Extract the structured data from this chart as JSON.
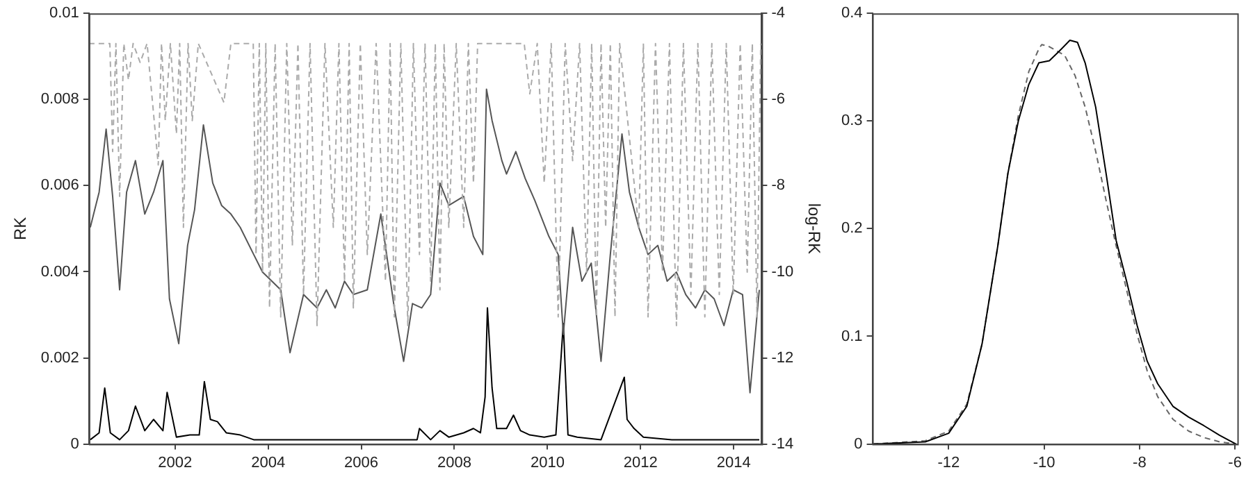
{
  "chart_data": [
    {
      "type": "line",
      "ylabel": "RK",
      "y2label": "log-RK",
      "xlim": [
        2000.15,
        2014.6
      ],
      "xticks": [
        2002,
        2004,
        2006,
        2008,
        2010,
        2012,
        2014
      ],
      "ylim": [
        0,
        0.01
      ],
      "yticks": [
        0,
        0.002,
        0.004,
        0.006,
        0.008,
        0.01
      ],
      "y2lim": [
        -14,
        -4
      ],
      "y2ticks": [
        -14,
        -12,
        -10,
        -8,
        -6,
        -4
      ],
      "grid": false,
      "marker": "none",
      "series": [
        {
          "color": "#aaaaaa",
          "axis": "y2",
          "line_style": "dashed",
          "x": [
            2000.15,
            2000.6,
            2000.66,
            2000.73,
            2000.81,
            2000.9,
            2001.0,
            2001.1,
            2001.25,
            2001.4,
            2001.64,
            2001.71,
            2001.79,
            2001.9,
            2002.03,
            2002.1,
            2002.18,
            2002.28,
            2002.37,
            2002.5,
            2003.05,
            2003.2,
            2003.68,
            2003.74,
            2003.81,
            2003.88,
            2003.95,
            2004.03,
            2004.15,
            2004.27,
            2004.4,
            2004.52,
            2004.64,
            2004.76,
            2004.9,
            2005.05,
            2005.22,
            2005.4,
            2005.52,
            2005.64,
            2005.74,
            2005.83,
            2005.98,
            2006.13,
            2006.32,
            2006.52,
            2006.62,
            2006.71,
            2006.85,
            2007.0,
            2007.12,
            2007.25,
            2007.37,
            2007.49,
            2007.59,
            2007.69,
            2007.78,
            2007.88,
            2008.04,
            2008.2,
            2008.3,
            2008.41,
            2008.5,
            2009.5,
            2009.62,
            2009.78,
            2009.93,
            2010.08,
            2010.23,
            2010.38,
            2010.54,
            2010.69,
            2010.84,
            2010.95,
            2011.05,
            2011.15,
            2011.25,
            2011.35,
            2011.45,
            2011.55,
            2011.96,
            2012.06,
            2012.16,
            2012.32,
            2012.47,
            2012.62,
            2012.77,
            2012.92,
            2013.08,
            2013.23,
            2013.38,
            2013.53,
            2013.69,
            2013.84,
            2013.99,
            2014.14,
            2014.29,
            2014.4,
            2014.5,
            2014.58
          ],
          "values": [
            -4.7,
            -4.7,
            -7.21,
            -4.7,
            -8.25,
            -4.7,
            -5.55,
            -4.7,
            -5.14,
            -4.7,
            -7.52,
            -4.7,
            -6.49,
            -4.7,
            -6.8,
            -4.7,
            -8.97,
            -4.7,
            -6.49,
            -4.7,
            -6.07,
            -4.7,
            -4.7,
            -9.6,
            -4.7,
            -10.01,
            -4.7,
            -10.84,
            -4.7,
            -11.05,
            -4.7,
            -9.39,
            -4.7,
            -10.53,
            -4.7,
            -11.25,
            -4.7,
            -8.97,
            -4.7,
            -10.22,
            -4.7,
            -10.84,
            -4.7,
            -9.6,
            -4.7,
            -10.22,
            -4.7,
            -11.05,
            -4.7,
            -11.25,
            -4.7,
            -9.6,
            -4.7,
            -10.22,
            -4.7,
            -10.42,
            -4.7,
            -8.97,
            -4.7,
            -8.97,
            -4.7,
            -7.94,
            -4.7,
            -4.7,
            -5.87,
            -4.7,
            -7.94,
            -4.7,
            -11.05,
            -4.7,
            -7.42,
            -4.7,
            -10.01,
            -4.7,
            -11.05,
            -4.7,
            -8.97,
            -4.7,
            -11.05,
            -4.7,
            -8.97,
            -4.7,
            -11.05,
            -4.7,
            -10.01,
            -4.7,
            -11.25,
            -4.7,
            -10.53,
            -4.7,
            -11.05,
            -4.7,
            -10.53,
            -4.7,
            -10.53,
            -4.7,
            -10.01,
            -4.7,
            -11.05,
            -4.7
          ]
        },
        {
          "color": "#555555",
          "axis": "y2",
          "x": [
            2000.18,
            2000.37,
            2000.52,
            2000.66,
            2000.81,
            2000.96,
            2001.15,
            2001.35,
            2001.54,
            2001.74,
            2001.88,
            2002.08,
            2002.27,
            2002.42,
            2002.61,
            2002.81,
            2003.0,
            2003.2,
            2003.4,
            2003.69,
            2003.88,
            2004.08,
            2004.27,
            2004.47,
            2004.76,
            2005.05,
            2005.25,
            2005.44,
            2005.64,
            2005.83,
            2006.13,
            2006.42,
            2006.71,
            2006.91,
            2007.1,
            2007.3,
            2007.49,
            2007.69,
            2007.88,
            2008.2,
            2008.41,
            2008.61,
            2008.69,
            2008.81,
            2009.02,
            2009.12,
            2009.32,
            2009.52,
            2009.73,
            2010.03,
            2010.23,
            2010.34,
            2010.54,
            2010.74,
            2010.94,
            2011.15,
            2011.35,
            2011.6,
            2011.76,
            2011.96,
            2012.16,
            2012.37,
            2012.57,
            2012.77,
            2012.97,
            2013.18,
            2013.38,
            2013.58,
            2013.79,
            2013.99,
            2014.19,
            2014.35,
            2014.55
          ],
          "values": [
            -8.97,
            -8.15,
            -6.69,
            -8.25,
            -10.42,
            -8.15,
            -7.42,
            -8.66,
            -8.15,
            -7.42,
            -10.63,
            -11.67,
            -9.39,
            -8.56,
            -6.59,
            -7.94,
            -8.46,
            -8.66,
            -8.97,
            -9.6,
            -10.01,
            -10.22,
            -10.42,
            -11.88,
            -10.53,
            -10.84,
            -10.42,
            -10.84,
            -10.22,
            -10.53,
            -10.42,
            -8.66,
            -10.84,
            -12.08,
            -10.74,
            -10.84,
            -10.53,
            -7.94,
            -8.46,
            -8.25,
            -9.18,
            -9.6,
            -5.76,
            -6.49,
            -7.42,
            -7.73,
            -7.21,
            -7.83,
            -8.35,
            -9.18,
            -9.6,
            -11.46,
            -8.97,
            -10.22,
            -9.8,
            -12.08,
            -9.6,
            -6.8,
            -8.15,
            -8.97,
            -9.6,
            -9.39,
            -10.22,
            -10.01,
            -10.53,
            -10.84,
            -10.42,
            -10.63,
            -11.25,
            -10.42,
            -10.53,
            -12.81,
            -10.42
          ]
        },
        {
          "color": "#000000",
          "axis": "y",
          "x": [
            2000.18,
            2000.37,
            2000.49,
            2000.61,
            2000.81,
            2001.0,
            2001.15,
            2001.35,
            2001.54,
            2001.74,
            2001.83,
            2002.03,
            2002.32,
            2002.52,
            2002.63,
            2002.76,
            2002.91,
            2003.1,
            2003.4,
            2003.69,
            2004.27,
            2005.25,
            2006.22,
            2007.2,
            2007.25,
            2007.49,
            2007.69,
            2007.88,
            2008.2,
            2008.41,
            2008.56,
            2008.66,
            2008.71,
            2008.81,
            2008.91,
            2009.12,
            2009.27,
            2009.42,
            2009.62,
            2009.93,
            2010.18,
            2010.34,
            2010.44,
            2010.64,
            2011.15,
            2011.65,
            2011.71,
            2011.86,
            2012.06,
            2012.67,
            2013.69,
            2014.55
          ],
          "values": [
            0.0001,
            0.00026,
            0.0013,
            0.00026,
            0.0001,
            0.00031,
            0.00088,
            0.00031,
            0.00057,
            0.00031,
            0.0012,
            0.00016,
            0.00021,
            0.00021,
            0.00145,
            0.00057,
            0.00052,
            0.00026,
            0.00021,
            0.0001,
            0.0001,
            0.0001,
            0.0001,
            0.0001,
            0.00036,
            0.0001,
            0.00031,
            0.00016,
            0.00026,
            0.00036,
            0.00026,
            0.00109,
            0.00316,
            0.0013,
            0.00036,
            0.00036,
            0.00067,
            0.00031,
            0.00021,
            0.00016,
            0.00021,
            0.0028,
            0.00021,
            0.00016,
            0.0001,
            0.00155,
            0.00057,
            0.00036,
            0.00016,
            0.0001,
            0.0001,
            0.0001
          ]
        }
      ]
    },
    {
      "type": "line",
      "xlim": [
        -13.6,
        -5.95
      ],
      "xticks": [
        -12,
        -10,
        -8,
        -6
      ],
      "ylim": [
        0,
        0.4
      ],
      "yticks": [
        0,
        0.1,
        0.2,
        0.3,
        0.4
      ],
      "grid": false,
      "marker": "none",
      "series": [
        {
          "color": "#000000",
          "x": [
            -13.59,
            -12.49,
            -12.0,
            -11.62,
            -11.3,
            -10.97,
            -10.76,
            -10.54,
            -10.32,
            -10.11,
            -9.89,
            -9.68,
            -9.46,
            -9.3,
            -9.14,
            -8.92,
            -8.7,
            -8.49,
            -8.27,
            -8.05,
            -7.84,
            -7.62,
            -7.3,
            -6.97,
            -6.65,
            -6.32,
            -5.98
          ],
          "values": [
            0,
            0.002,
            0.01,
            0.035,
            0.093,
            0.184,
            0.251,
            0.3,
            0.334,
            0.354,
            0.356,
            0.365,
            0.375,
            0.373,
            0.354,
            0.313,
            0.251,
            0.189,
            0.151,
            0.11,
            0.077,
            0.056,
            0.035,
            0.025,
            0.017,
            0.008,
            0
          ]
        },
        {
          "color": "#666666",
          "line_style": "dashed",
          "x": [
            -13.59,
            -12.49,
            -12.0,
            -11.62,
            -11.3,
            -10.97,
            -10.76,
            -10.54,
            -10.32,
            -10.11,
            -10.05,
            -9.89,
            -9.57,
            -9.35,
            -9.14,
            -8.92,
            -8.7,
            -8.49,
            -8.27,
            -8.05,
            -7.84,
            -7.62,
            -7.3,
            -6.97,
            -6.65,
            -6.32,
            -5.98
          ],
          "values": [
            0,
            0.003,
            0.012,
            0.037,
            0.093,
            0.184,
            0.251,
            0.305,
            0.346,
            0.367,
            0.371,
            0.369,
            0.361,
            0.342,
            0.313,
            0.272,
            0.226,
            0.184,
            0.143,
            0.102,
            0.068,
            0.044,
            0.023,
            0.012,
            0.006,
            0.002,
            0
          ]
        }
      ]
    }
  ]
}
